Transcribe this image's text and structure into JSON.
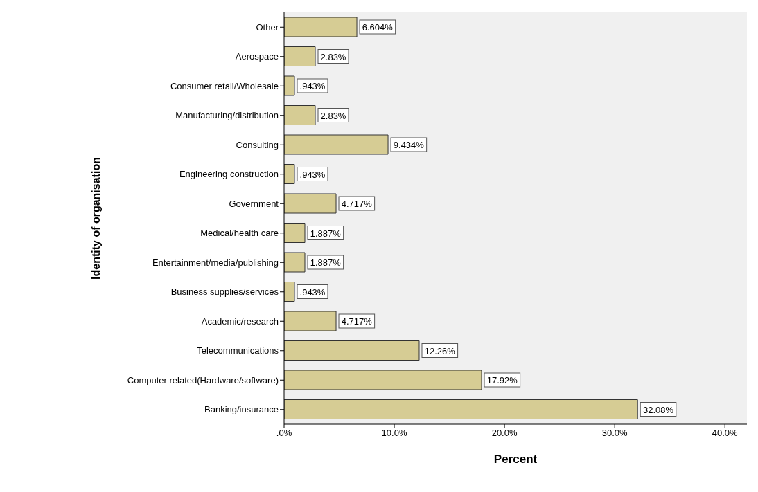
{
  "chart_data": {
    "type": "bar",
    "orientation": "horizontal",
    "xlabel": "Percent",
    "ylabel": "Identity of organisation",
    "categories": [
      "Other",
      "Aerospace",
      "Consumer retail/Wholesale",
      "Manufacturing/distribution",
      "Consulting",
      "Engineering construction",
      "Government",
      "Medical/health care",
      "Entertainment/media/publishing",
      "Business supplies/services",
      "Academic/research",
      "Telecommunications",
      "Computer related(Hardware/software)",
      "Banking/insurance"
    ],
    "values": [
      6.604,
      2.83,
      0.943,
      2.83,
      9.434,
      0.943,
      4.717,
      1.887,
      1.887,
      0.943,
      4.717,
      12.26,
      17.92,
      32.08
    ],
    "value_labels": [
      "6.604%",
      "2.83%",
      ".943%",
      "2.83%",
      "9.434%",
      ".943%",
      "4.717%",
      "1.887%",
      "1.887%",
      ".943%",
      "4.717%",
      "12.26%",
      "17.92%",
      "32.08%"
    ],
    "color": "#d6cc94",
    "xlim": [
      0,
      42
    ],
    "xticks": [
      {
        "value": 0,
        "label": ".0%"
      },
      {
        "value": 10,
        "label": "10.0%"
      },
      {
        "value": 20,
        "label": "20.0%"
      },
      {
        "value": 30,
        "label": "30.0%"
      },
      {
        "value": 40,
        "label": "40.0%"
      }
    ]
  }
}
